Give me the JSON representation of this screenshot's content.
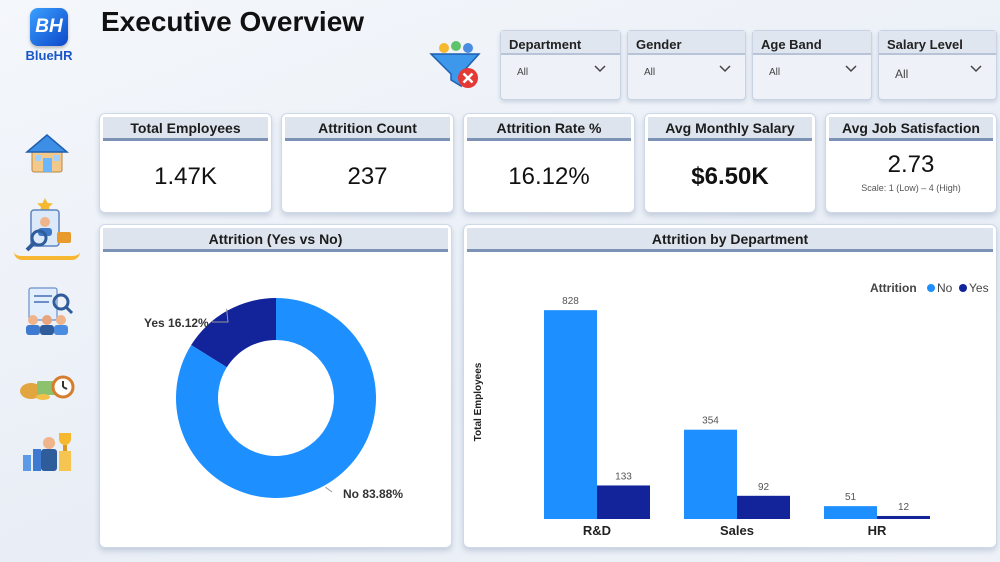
{
  "brand": {
    "logo_text": "BlueHR",
    "badge": "BH"
  },
  "page": {
    "title": "Executive Overview"
  },
  "nav": [
    {
      "name": "home-icon"
    },
    {
      "name": "employee-profile-icon",
      "active": true
    },
    {
      "name": "team-review-icon"
    },
    {
      "name": "money-time-icon"
    },
    {
      "name": "trophy-performance-icon"
    }
  ],
  "filters": [
    {
      "label": "Department",
      "value": "All"
    },
    {
      "label": "Gender",
      "value": "All"
    },
    {
      "label": "Age Band",
      "value": "All"
    },
    {
      "label": "Salary Level",
      "value": "All"
    }
  ],
  "kpis": [
    {
      "label": "Total Employees",
      "value": "1.47K"
    },
    {
      "label": "Attrition Count",
      "value": "237"
    },
    {
      "label": "Attrition Rate %",
      "value": "16.12%"
    },
    {
      "label": "Avg Monthly Salary",
      "value": "$6.50K"
    },
    {
      "label": "Avg Job Satisfaction",
      "value": "2.73",
      "note": "Scale: 1 (Low) – 4 (High)"
    }
  ],
  "colors": {
    "no": "#1e8fff",
    "yes": "#13239a"
  },
  "chart_data": [
    {
      "type": "pie",
      "title": "Attrition (Yes vs No)",
      "labels": [
        "Yes",
        "No"
      ],
      "values": [
        16.12,
        83.88
      ],
      "data_labels": [
        "Yes 16.12%",
        "No 83.88%"
      ],
      "donut": true
    },
    {
      "type": "bar",
      "title": "Attrition by Department",
      "categories": [
        "R&D",
        "Sales",
        "HR"
      ],
      "series": [
        {
          "name": "No",
          "values": [
            828,
            354,
            51
          ]
        },
        {
          "name": "Yes",
          "values": [
            133,
            92,
            12
          ]
        }
      ],
      "ylabel": "Total Employees",
      "legend_title": "Attrition",
      "legend_position": "top-right",
      "ylim": [
        0,
        900
      ],
      "grid": false
    }
  ]
}
